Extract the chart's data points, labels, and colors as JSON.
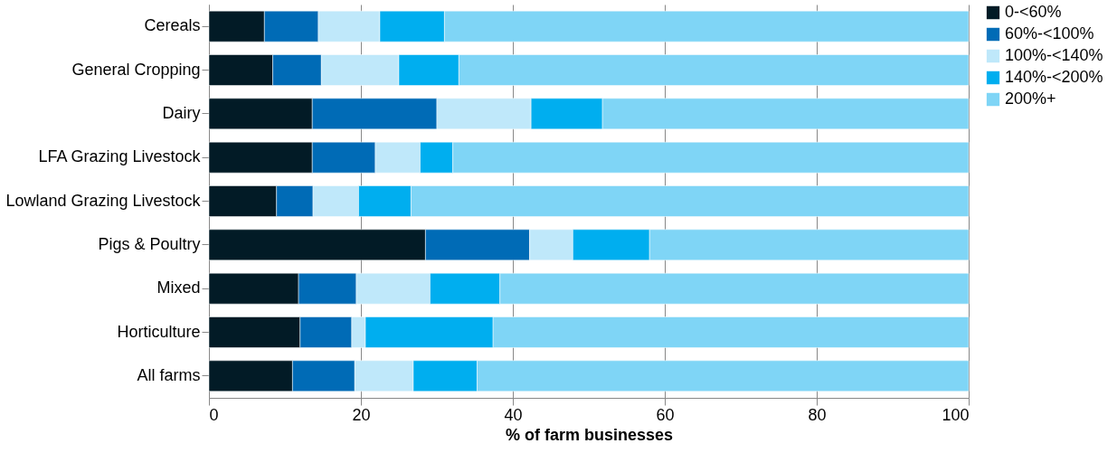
{
  "chart_data": {
    "type": "bar",
    "orientation": "horizontal",
    "stacked": true,
    "categories": [
      "Cereals",
      "General Cropping",
      "Dairy",
      "LFA Grazing Livestock",
      "Lowland Grazing Livestock",
      "Pigs & Poultry",
      "Mixed",
      "Horticulture",
      "All farms"
    ],
    "series": [
      {
        "name": "0-<60%",
        "color": "#021b26",
        "values": [
          7.3,
          8.4,
          13.6,
          13.6,
          8.9,
          28.5,
          11.8,
          12.0,
          11.0
        ]
      },
      {
        "name": "60%-<100%",
        "color": "#006bb6",
        "values": [
          7.1,
          6.4,
          16.4,
          8.3,
          4.8,
          13.7,
          7.6,
          6.8,
          8.2
        ]
      },
      {
        "name": "100%-<140%",
        "color": "#bfe8fa",
        "values": [
          8.1,
          10.2,
          12.4,
          5.9,
          6.0,
          5.7,
          9.7,
          1.8,
          7.7
        ]
      },
      {
        "name": "140%-<200%",
        "color": "#00aeef",
        "values": [
          8.5,
          7.9,
          9.4,
          4.3,
          6.9,
          10.1,
          9.2,
          16.8,
          8.4
        ]
      },
      {
        "name": "200%+",
        "color": "#7fd5f6",
        "values": [
          69.0,
          67.1,
          48.2,
          67.9,
          73.4,
          42.0,
          61.7,
          62.6,
          64.7
        ]
      }
    ],
    "xlabel": "% of farm businesses",
    "xlim": [
      0,
      100
    ],
    "xticks": [
      0,
      20,
      40,
      60,
      80,
      100
    ],
    "grid": "x",
    "legend": "right"
  }
}
